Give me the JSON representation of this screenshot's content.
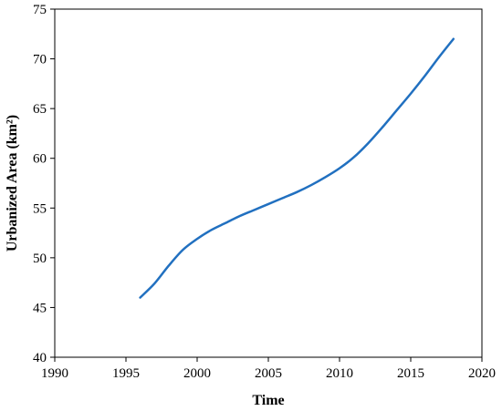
{
  "chart_data": {
    "type": "line",
    "xlabel": "Time",
    "ylabel": "Urbanized Area (km²)",
    "xlim": [
      1990,
      2020
    ],
    "ylim": [
      40,
      75
    ],
    "x_ticks": [
      1990,
      1995,
      2000,
      2005,
      2010,
      2015,
      2020
    ],
    "y_ticks": [
      40,
      45,
      50,
      55,
      60,
      65,
      70,
      75
    ],
    "grid": false,
    "line_color": "#2170c0",
    "series": [
      {
        "x": [
          1996,
          1997,
          1998,
          1999,
          2000,
          2001,
          2002,
          2003,
          2004,
          2005,
          2006,
          2007,
          2008,
          2009,
          2010,
          2011,
          2012,
          2013,
          2014,
          2015,
          2016,
          2017,
          2018
        ],
        "values": [
          46.0,
          47.4,
          49.2,
          50.8,
          51.9,
          52.8,
          53.5,
          54.2,
          54.8,
          55.4,
          56.0,
          56.6,
          57.3,
          58.1,
          59.0,
          60.1,
          61.5,
          63.1,
          64.8,
          66.5,
          68.3,
          70.2,
          72.0
        ]
      }
    ]
  }
}
